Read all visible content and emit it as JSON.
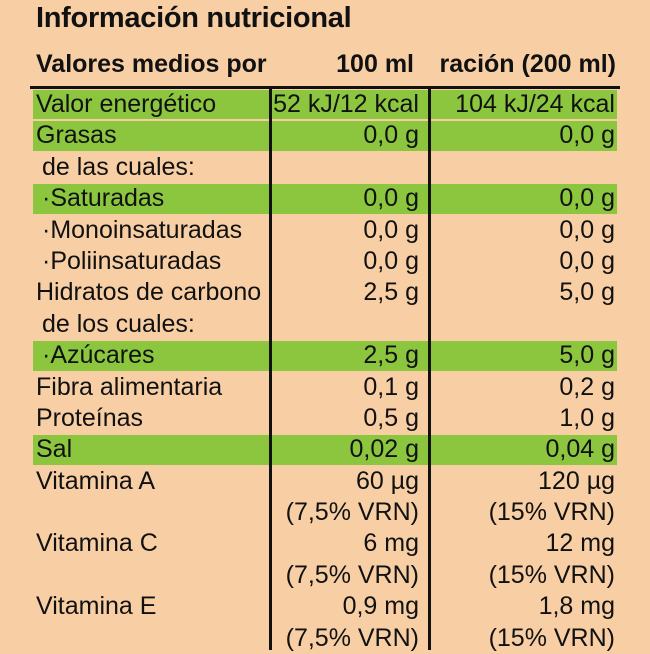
{
  "title": "Información nutricional",
  "header": {
    "label": "Valores medios por",
    "col_100": "100 ml",
    "col_racion": "ración (200 ml)"
  },
  "rows": [
    {
      "label": "Valor energético",
      "v100": "52 kJ/12 kcal",
      "vrac": "104 kJ/24 kcal",
      "highlight": true
    },
    {
      "label": "Grasas",
      "v100": "0,0 g",
      "vrac": "0,0 g",
      "highlight": true
    },
    {
      "label": "de las cuales:",
      "v100": "",
      "vrac": "",
      "highlight": false,
      "indent": true
    },
    {
      "label": "·Saturadas",
      "v100": "0,0 g",
      "vrac": "0,0 g",
      "highlight": true,
      "indent": true
    },
    {
      "label": "·Monoinsaturadas",
      "v100": "0,0 g",
      "vrac": "0,0 g",
      "highlight": false,
      "indent": true
    },
    {
      "label": "·Poliinsaturadas",
      "v100": "0,0 g",
      "vrac": "0,0 g",
      "highlight": false,
      "indent": true
    },
    {
      "label": "Hidratos de carbono",
      "v100": "2,5 g",
      "vrac": "5,0 g",
      "highlight": false
    },
    {
      "label": "de los cuales:",
      "v100": "",
      "vrac": "",
      "highlight": false,
      "indent": true
    },
    {
      "label": "·Azúcares",
      "v100": "2,5 g",
      "vrac": "5,0 g",
      "highlight": true,
      "indent": true
    },
    {
      "label": "Fibra alimentaria",
      "v100": "0,1 g",
      "vrac": "0,2 g",
      "highlight": false
    },
    {
      "label": "Proteínas",
      "v100": "0,5 g",
      "vrac": "1,0 g",
      "highlight": false
    },
    {
      "label": "Sal",
      "v100": "0,02 g",
      "vrac": "0,04 g",
      "highlight": true
    },
    {
      "label": "Vitamina A",
      "v100": "60 µg",
      "vrac": "120 µg",
      "sub100": "(7,5% VRN)",
      "subrac": "(15% VRN)",
      "highlight": false
    },
    {
      "label": "Vitamina C",
      "v100": "6 mg",
      "vrac": "12 mg",
      "sub100": "(7,5% VRN)",
      "subrac": "(15% VRN)",
      "highlight": false
    },
    {
      "label": "Vitamina E",
      "v100": "0,9 mg",
      "vrac": "1,8 mg",
      "sub100": "(7,5% VRN)",
      "subrac": "(15% VRN)",
      "highlight": false
    }
  ]
}
